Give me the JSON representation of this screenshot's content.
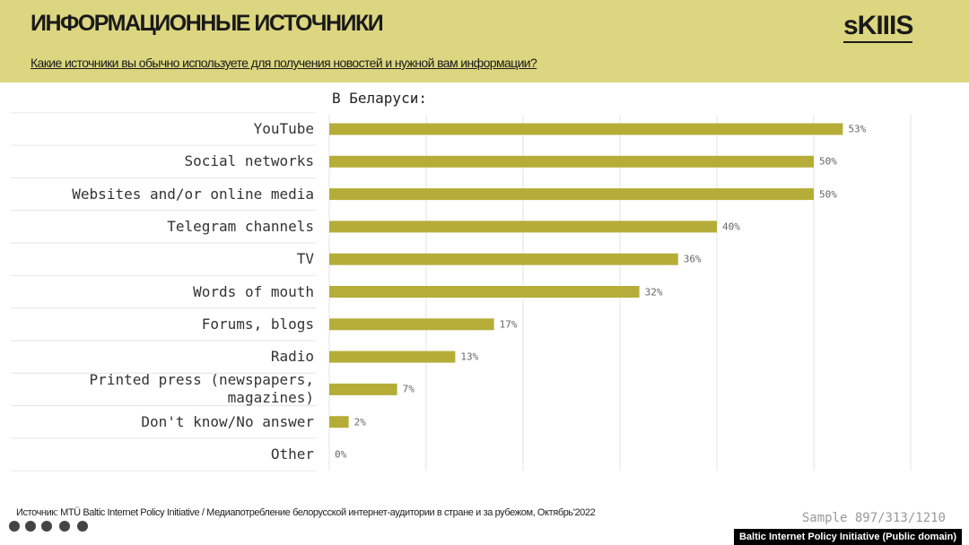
{
  "header": {
    "title": "ИНФОРМАЦИОННЫЕ ИСТОЧНИКИ",
    "subtitle": "Какие источники вы обычно используете для получения новостей и нужной вам информации?",
    "logo": "sKIIIS"
  },
  "chart_data": {
    "type": "bar",
    "orientation": "horizontal",
    "title": "В Беларуси:",
    "categories": [
      "YouTube",
      "Social networks",
      "Websites and/or online media",
      "Telegram channels",
      "TV",
      "Words of mouth",
      "Forums, blogs",
      "Radio",
      "Printed press (newspapers,\nmagazines)",
      "Don't know/No answer",
      "Other"
    ],
    "values": [
      53,
      50,
      50,
      40,
      36,
      32,
      17,
      13,
      7,
      2,
      0
    ],
    "value_labels": [
      "53%",
      "50%",
      "50%",
      "40%",
      "36%",
      "32%",
      "17%",
      "13%",
      "7%",
      "2%",
      "0%"
    ],
    "color": "#b5ad38",
    "xlim": [
      0,
      60
    ],
    "xticks": [
      0,
      10,
      20,
      30,
      40,
      50,
      60
    ],
    "grid": true
  },
  "footer": {
    "source": "Источник: MTÜ Baltic Internet Policy Initiative / Медиапотребление белорусской интернет-аудитории в стране и за рубежом,  Октябрь'2022",
    "sample": "Sample 897/313/1210",
    "credit": "Baltic Internet Policy Initiative (Public domain)"
  }
}
